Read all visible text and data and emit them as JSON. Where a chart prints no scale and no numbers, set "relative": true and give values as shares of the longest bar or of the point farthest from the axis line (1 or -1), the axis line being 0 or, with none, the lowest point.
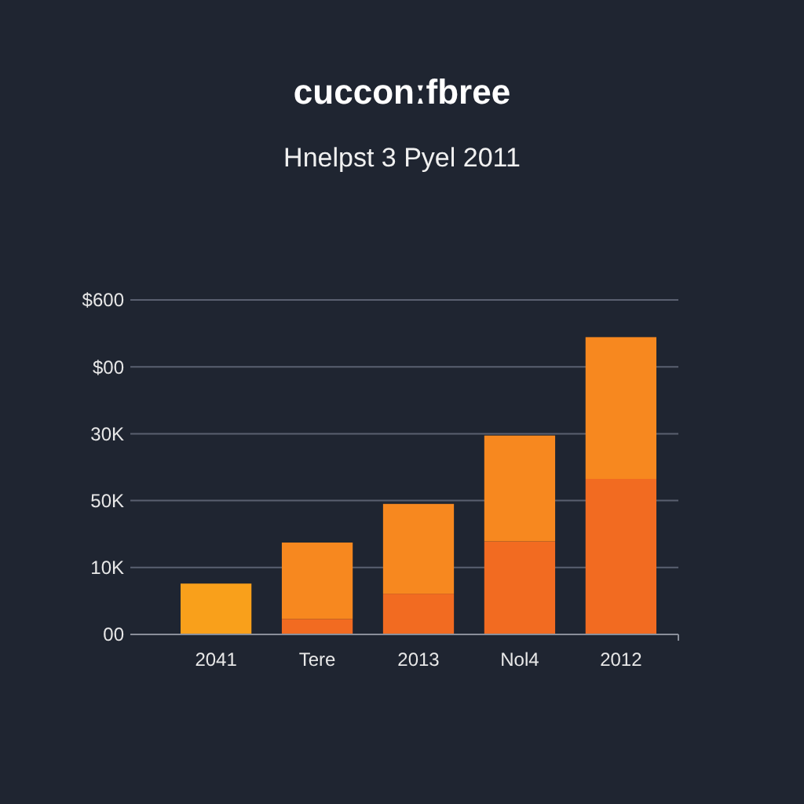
{
  "chart_data": {
    "type": "bar",
    "title": "cucconːfbree",
    "subtitle": "Hnelpst 3 Pyel 2011",
    "categories": [
      "2041",
      "Tere",
      "2013",
      "Nol4",
      "2012"
    ],
    "stacked": true,
    "relative": true,
    "series": [
      {
        "color": "#f9a01b",
        "values": [
          0.171,
          null,
          null,
          null,
          null
        ]
      },
      {
        "color": "#f26b21",
        "values": [
          null,
          0.052,
          0.137,
          0.313,
          0.523
        ]
      },
      {
        "color": "#f7881f",
        "values": [
          0,
          0.257,
          0.302,
          0.356,
          0.477
        ]
      }
    ],
    "annotations": [
      "00",
      "10K",
      "50K",
      "30K",
      "$00",
      "$600"
    ],
    "grid": "y"
  }
}
